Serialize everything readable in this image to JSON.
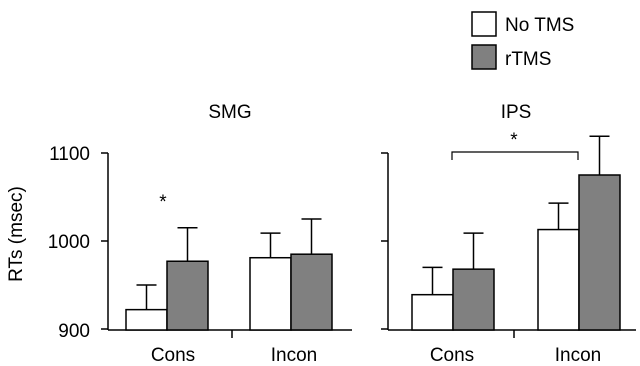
{
  "figure": {
    "ylabel": "RTs (msec)"
  },
  "legend": {
    "placement": "top-right",
    "items": [
      {
        "label": "No TMS",
        "color": "#ffffff"
      },
      {
        "label": "rTMS",
        "color": "#808080"
      }
    ]
  },
  "chart_data": [
    {
      "type": "bar",
      "title": "SMG",
      "categories": [
        "Cons",
        "Incon"
      ],
      "ylabel": "RTs (msec)",
      "ylim": [
        900,
        1100
      ],
      "yticks": [
        900,
        1000,
        1100
      ],
      "grid": false,
      "series": [
        {
          "name": "No TMS",
          "color": "#ffffff",
          "values": [
            922,
            981
          ],
          "error": [
            28,
            28
          ]
        },
        {
          "name": "rTMS",
          "color": "#808080",
          "values": [
            977,
            985
          ],
          "error": [
            38,
            40
          ]
        }
      ],
      "annotations": [
        {
          "text": "*",
          "category": "Cons",
          "type": "significance"
        }
      ]
    },
    {
      "type": "bar",
      "title": "IPS",
      "categories": [
        "Cons",
        "Incon"
      ],
      "ylim": [
        900,
        1100
      ],
      "grid": false,
      "series": [
        {
          "name": "No TMS",
          "color": "#ffffff",
          "values": [
            939,
            1013
          ],
          "error": [
            31,
            30
          ]
        },
        {
          "name": "rTMS",
          "color": "#808080",
          "values": [
            968,
            1075
          ],
          "error": [
            41,
            44
          ]
        }
      ],
      "annotations": [
        {
          "text": "*",
          "from": "Cons",
          "to": "Incon",
          "type": "significance-bracket"
        }
      ]
    }
  ]
}
